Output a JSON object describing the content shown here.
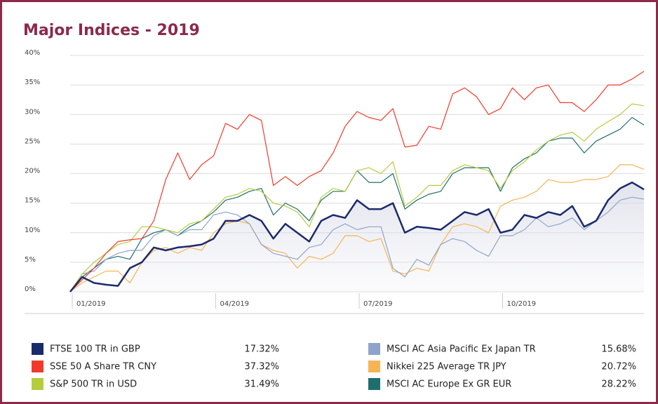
{
  "chart_data": {
    "type": "line",
    "title": "Major Indices - 2019",
    "categories": [
      "01/2019",
      null,
      null,
      null,
      null,
      null,
      null,
      null,
      null,
      null,
      null,
      null,
      "04/2019",
      null,
      null,
      null,
      null,
      null,
      null,
      null,
      null,
      null,
      null,
      null,
      "07/2019",
      null,
      null,
      null,
      null,
      null,
      null,
      null,
      null,
      null,
      null,
      null,
      "10/2019",
      null,
      null,
      null,
      null,
      null,
      null,
      null,
      null,
      null,
      null,
      null,
      null
    ],
    "ylim": [
      0,
      40
    ],
    "yticks": [
      {
        "value": 0,
        "label": "0%"
      },
      {
        "value": 5,
        "label": "5%"
      },
      {
        "value": 10,
        "label": "10%"
      },
      {
        "value": 15,
        "label": "15%"
      },
      {
        "value": 20,
        "label": "20%"
      },
      {
        "value": 25,
        "label": "25%"
      },
      {
        "value": 30,
        "label": "30%"
      },
      {
        "value": 35,
        "label": "35%"
      },
      {
        "value": 40,
        "label": "40%"
      }
    ],
    "grid": true,
    "series": [
      {
        "name": "FTSE 100 TR in GBP",
        "color": "#1b2a6b",
        "return_label": "17.32%",
        "values": [
          0,
          2.5,
          1.5,
          1.2,
          1,
          4,
          5,
          7.5,
          7,
          7.5,
          7.7,
          8,
          9,
          12,
          12,
          13,
          12,
          9,
          11.5,
          10,
          8.5,
          12,
          13,
          12.5,
          15.5,
          14,
          14,
          15,
          10,
          11,
          10.8,
          10.5,
          12,
          13.5,
          13,
          14,
          10,
          10.5,
          13,
          12.5,
          13.5,
          13,
          14.5,
          11,
          12,
          15.5,
          17.5,
          18.5,
          17.32
        ]
      },
      {
        "name": "SSE 50 A Share TR CNY",
        "color": "#f23a2a",
        "return_label": "37.32%",
        "values": [
          0,
          2,
          4,
          6.5,
          8.5,
          8.8,
          9,
          12,
          19,
          23.5,
          19,
          21.5,
          23,
          28.5,
          27.5,
          30,
          29,
          18,
          19.5,
          18,
          19.5,
          20.5,
          23.5,
          28,
          30.5,
          29.5,
          29,
          31,
          24.5,
          24.8,
          28,
          27.5,
          33.5,
          34.5,
          33,
          30,
          31,
          34.5,
          32.5,
          34.5,
          35,
          32,
          32,
          30.5,
          32.5,
          35,
          35,
          36,
          37.32
        ]
      },
      {
        "name": "S&P 500 TR in USD",
        "color": "#b5cc3c",
        "return_label": "31.49%",
        "values": [
          0,
          3,
          5,
          6.5,
          8,
          8.5,
          11,
          11,
          10.5,
          10,
          11.5,
          12,
          14,
          16,
          16.5,
          17.5,
          17,
          15,
          14.5,
          13.5,
          11,
          16,
          17.5,
          17,
          20.5,
          21,
          20,
          22,
          14.5,
          16,
          18,
          18,
          20.5,
          21.5,
          21,
          20.5,
          17.5,
          20.5,
          22,
          24,
          25.5,
          26.5,
          27,
          25.5,
          27.5,
          28.8,
          30,
          31.8,
          31.49
        ]
      },
      {
        "name": "MSCI AC Asia Pacific Ex Japan TR",
        "color": "#8fa3c8",
        "return_label": "15.68%",
        "values": [
          0,
          3,
          3.5,
          5.5,
          6.5,
          7,
          7,
          9.5,
          10.5,
          9.5,
          10.5,
          10.5,
          13,
          13.5,
          13,
          11.5,
          8,
          6.5,
          6,
          5.5,
          7.5,
          8,
          10.5,
          11.5,
          10.5,
          11,
          11,
          4,
          2.5,
          5.5,
          4.5,
          8,
          9,
          8.5,
          7,
          6,
          9.5,
          9.5,
          10.5,
          12.5,
          11,
          11.5,
          12.5,
          10.5,
          12,
          13.5,
          15.5,
          16,
          15.68
        ]
      },
      {
        "name": "Nikkei 225 Average TR JPY",
        "color": "#f7b455",
        "return_label": "20.72%",
        "values": [
          0,
          1.5,
          2.5,
          3.5,
          3.5,
          1.5,
          5,
          7,
          7.5,
          6.5,
          7.5,
          7,
          10,
          11.5,
          12,
          11.5,
          8,
          7,
          6.5,
          4,
          6,
          5.5,
          6.5,
          9.5,
          9.5,
          8.5,
          9,
          3.5,
          3,
          4,
          3.5,
          8,
          11,
          11.5,
          11,
          10,
          14.5,
          15.5,
          16,
          17,
          19,
          18.5,
          18.5,
          19,
          19,
          19.5,
          21.5,
          21.5,
          20.72
        ]
      },
      {
        "name": "MSCI AC Europe Ex GR EUR",
        "color": "#1e6e6e",
        "return_label": "28.22%",
        "values": [
          0,
          2.5,
          4,
          5.5,
          6,
          5.5,
          9,
          10,
          10.5,
          9.5,
          11,
          12,
          13.5,
          15.5,
          16,
          17,
          17.5,
          13,
          15,
          14,
          12,
          15.5,
          17,
          17,
          20.5,
          18.5,
          18.5,
          20,
          14,
          15.5,
          16.5,
          17,
          20,
          21,
          21,
          21,
          17,
          21,
          22.5,
          23.5,
          25.5,
          26,
          26,
          23.5,
          25.5,
          26.5,
          27.5,
          29.5,
          28.22
        ]
      }
    ]
  }
}
